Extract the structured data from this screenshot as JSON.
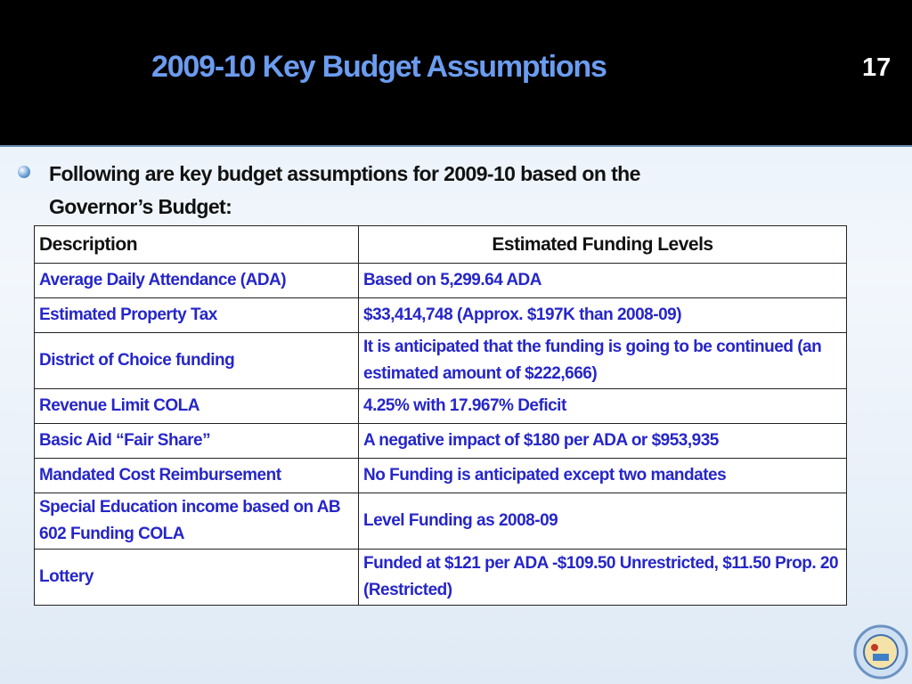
{
  "header": {
    "title": "2009-10 Key Budget Assumptions",
    "slide_number": "17"
  },
  "bullet": {
    "text": "Following are key budget assumptions for 2009-10 based on the Governor’s Budget:"
  },
  "table": {
    "columns": [
      "Description",
      "Estimated Funding Levels"
    ],
    "rows": [
      [
        "Average Daily Attendance (ADA)",
        "Based on 5,299.64 ADA"
      ],
      [
        "Estimated Property Tax",
        "$33,414,748 (Approx. $197K than 2008-09)"
      ],
      [
        "District of Choice funding",
        "It is anticipated that the funding is going to be continued (an estimated amount of $222,666)"
      ],
      [
        "Revenue Limit COLA",
        "4.25% with 17.967% Deficit"
      ],
      [
        "Basic Aid “Fair Share”",
        "A negative impact of $180 per ADA or $953,935"
      ],
      [
        "Mandated Cost Reimbursement",
        "No Funding is anticipated except two mandates"
      ],
      [
        "Special Education income based on AB 602 Funding COLA",
        "Level Funding as 2008-09"
      ],
      [
        "Lottery",
        "Funded at $121 per ADA -$109.50 Unrestricted, $11.50 Prop. 20 (Restricted)"
      ]
    ]
  }
}
